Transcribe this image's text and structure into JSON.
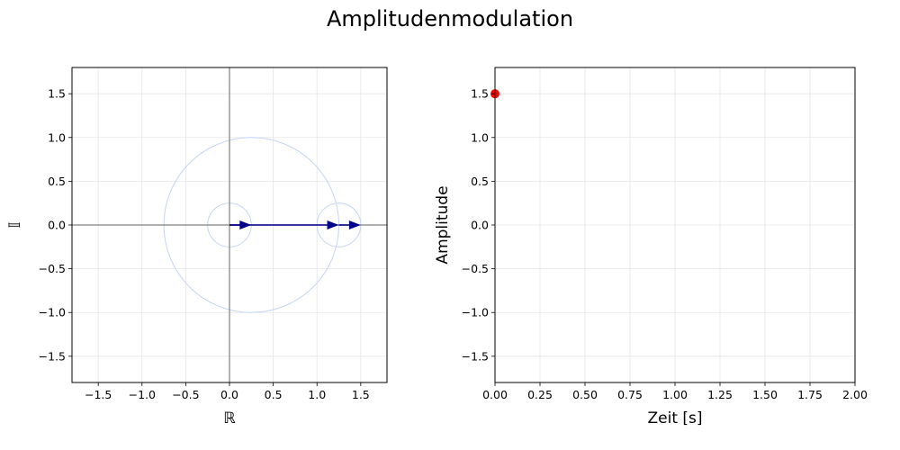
{
  "figure": {
    "title": "Amplitudenmodulation"
  },
  "chart_data": [
    {
      "type": "phasor",
      "xlabel": "ℝ",
      "ylabel": "𝕀",
      "xlim": [
        -1.8,
        1.8
      ],
      "ylim": [
        -1.8,
        1.8
      ],
      "xticks": [
        "−1.5",
        "−1.0",
        "−0.5",
        "0.0",
        "0.5",
        "1.0",
        "1.5"
      ],
      "xtick_values": [
        -1.5,
        -1.0,
        -0.5,
        0.0,
        0.5,
        1.0,
        1.5
      ],
      "yticks": [
        "1.5",
        "1.0",
        "0.5",
        "0.0",
        "−0.5",
        "−1.0",
        "−1.5"
      ],
      "ytick_values": [
        1.5,
        1.0,
        0.5,
        0.0,
        -0.5,
        -1.0,
        -1.5
      ],
      "grid": true,
      "circles": [
        {
          "cx": 0.25,
          "cy": 0,
          "r": 1.0
        },
        {
          "cx": 0.0,
          "cy": 0,
          "r": 0.25
        },
        {
          "cx": 1.25,
          "cy": 0,
          "r": 0.25
        }
      ],
      "phasors": [
        {
          "x0": 0.0,
          "y0": 0,
          "x1": 0.25,
          "y1": 0
        },
        {
          "x0": 0.0,
          "y0": 0,
          "x1": 1.25,
          "y1": 0
        },
        {
          "x0": 1.25,
          "y0": 0,
          "x1": 1.5,
          "y1": 0
        }
      ],
      "colors": {
        "circle": "#c6d4f5",
        "phasor": "#00008b",
        "axis": "#808080",
        "grid": "#e6e6e6"
      }
    },
    {
      "type": "scatter",
      "xlabel": "Zeit [s]",
      "ylabel": "Amplitude",
      "xlim": [
        0,
        2.0
      ],
      "ylim": [
        -1.8,
        1.8
      ],
      "xticks": [
        "0.00",
        "0.25",
        "0.50",
        "0.75",
        "1.00",
        "1.25",
        "1.50",
        "1.75",
        "2.00"
      ],
      "xtick_values": [
        0,
        0.25,
        0.5,
        0.75,
        1.0,
        1.25,
        1.5,
        1.75,
        2.0
      ],
      "yticks": [
        "1.5",
        "1.0",
        "0.5",
        "0.0",
        "−0.5",
        "−1.0",
        "−1.5"
      ],
      "ytick_values": [
        1.5,
        1.0,
        0.5,
        0.0,
        -0.5,
        -1.0,
        -1.5
      ],
      "grid": true,
      "points": [
        {
          "x": 0.0,
          "y": 1.5
        }
      ],
      "colors": {
        "point": "#ff0000",
        "grid": "#e6e6e6"
      }
    }
  ]
}
